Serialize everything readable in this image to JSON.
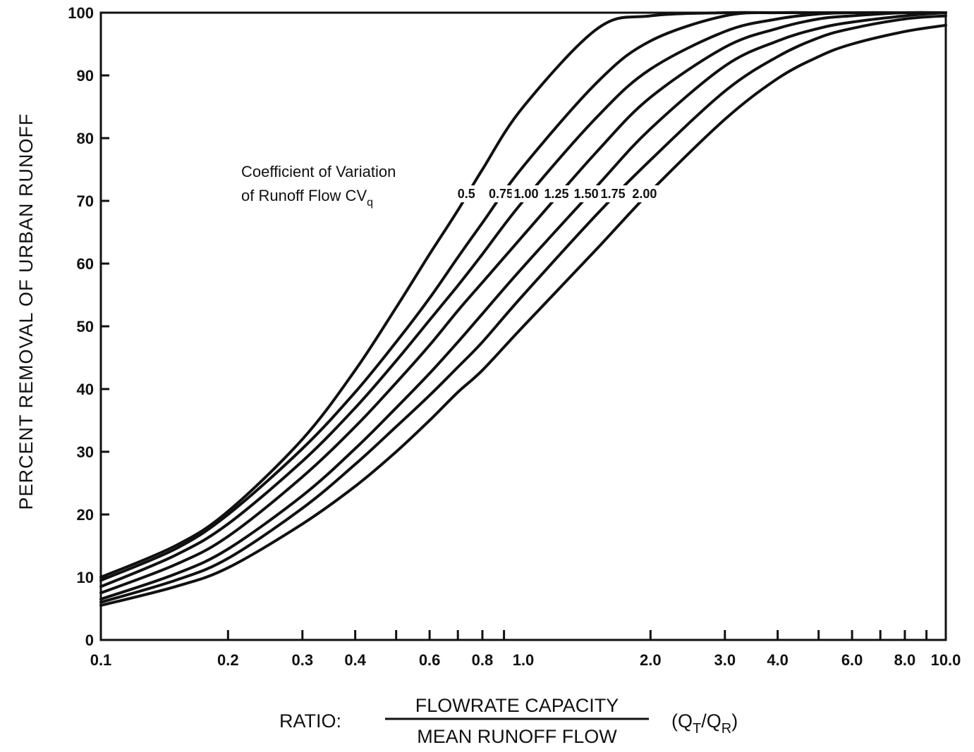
{
  "chart_data": {
    "type": "line",
    "title": "",
    "xlabel": {
      "prefix": "RATIO:",
      "numerator": "FLOWRATE CAPACITY",
      "denominator": "MEAN RUNOFF FLOW",
      "suffix_main": "(Q",
      "suffix_sub1": "T",
      "suffix_mid": "/Q",
      "suffix_sub2": "R",
      "suffix_end": ")"
    },
    "ylabel": "PERCENT REMOVAL OF URBAN RUNOFF",
    "x_scale": "log",
    "xlim": [
      0.1,
      10.0
    ],
    "ylim": [
      0,
      100
    ],
    "y_ticks": [
      0,
      10,
      20,
      30,
      40,
      50,
      60,
      70,
      80,
      90,
      100
    ],
    "x_ticks_labeled": [
      {
        "value": 0.1,
        "label": "0.1"
      },
      {
        "value": 0.2,
        "label": "0.2"
      },
      {
        "value": 0.3,
        "label": "0.3"
      },
      {
        "value": 0.4,
        "label": "0.4"
      },
      {
        "value": 0.6,
        "label": "0.6"
      },
      {
        "value": 0.8,
        "label": "0.8"
      },
      {
        "value": 1.0,
        "label": "1.0"
      },
      {
        "value": 2.0,
        "label": "2.0"
      },
      {
        "value": 3.0,
        "label": "3.0"
      },
      {
        "value": 4.0,
        "label": "4.0"
      },
      {
        "value": 6.0,
        "label": "6.0"
      },
      {
        "value": 8.0,
        "label": "8.0"
      },
      {
        "value": 10.0,
        "label": "10.0"
      }
    ],
    "x_minor_ticks": [
      0.2,
      0.3,
      0.4,
      0.5,
      0.6,
      0.7,
      0.8,
      0.9,
      2,
      3,
      4,
      5,
      6,
      7,
      8,
      9
    ],
    "grid": false,
    "annotation": {
      "line1": "Coefficient of Variation",
      "line2_main": "of Runoff Flow CV",
      "line2_sub": "q"
    },
    "x": [
      0.1,
      0.15,
      0.2,
      0.3,
      0.4,
      0.5,
      0.6,
      0.7,
      0.8,
      1.0,
      1.5,
      2.0,
      3.0,
      4.0,
      5.0,
      6.0,
      8.0,
      10.0
    ],
    "series": [
      {
        "name": "0.5",
        "values": [
          10,
          15,
          20.5,
          32,
          43,
          53,
          61.5,
          68.5,
          75,
          85,
          97.5,
          99.5,
          100,
          100,
          100,
          100,
          100,
          100
        ]
      },
      {
        "name": "0.75",
        "values": [
          9.5,
          14.5,
          20,
          30.5,
          39.5,
          47.5,
          54.5,
          61,
          66.5,
          75.5,
          89,
          95.5,
          99.5,
          100,
          100,
          100,
          100,
          100
        ]
      },
      {
        "name": "1.00",
        "values": [
          8.5,
          13.5,
          18.5,
          28.5,
          37,
          44.5,
          51,
          56.5,
          61.5,
          70,
          83.5,
          91,
          97,
          99,
          99.8,
          100,
          100,
          100
        ]
      },
      {
        "name": "1.25",
        "values": [
          7.5,
          12,
          16.5,
          26,
          34,
          41,
          47,
          52.5,
          57,
          64.5,
          78,
          86.5,
          94.5,
          97.5,
          99,
          99.5,
          100,
          100
        ]
      },
      {
        "name": "1.50",
        "values": [
          6.5,
          10.5,
          14.5,
          23,
          30.5,
          37,
          42.5,
          47.5,
          52,
          59.5,
          72.5,
          81.5,
          91.5,
          95.5,
          97.5,
          98.5,
          99.5,
          100
        ]
      },
      {
        "name": "1.75",
        "values": [
          6,
          9.5,
          13,
          21,
          28,
          34,
          39,
          43.5,
          47.5,
          55,
          68,
          76.5,
          87.5,
          93,
          96,
          97.5,
          99,
          99.5
        ]
      },
      {
        "name": "2.00",
        "values": [
          5.5,
          8.5,
          11.5,
          18.5,
          24.5,
          30,
          35,
          39.5,
          43,
          50,
          62.5,
          71.5,
          83,
          89.5,
          93,
          95,
          97,
          98
        ]
      }
    ]
  }
}
